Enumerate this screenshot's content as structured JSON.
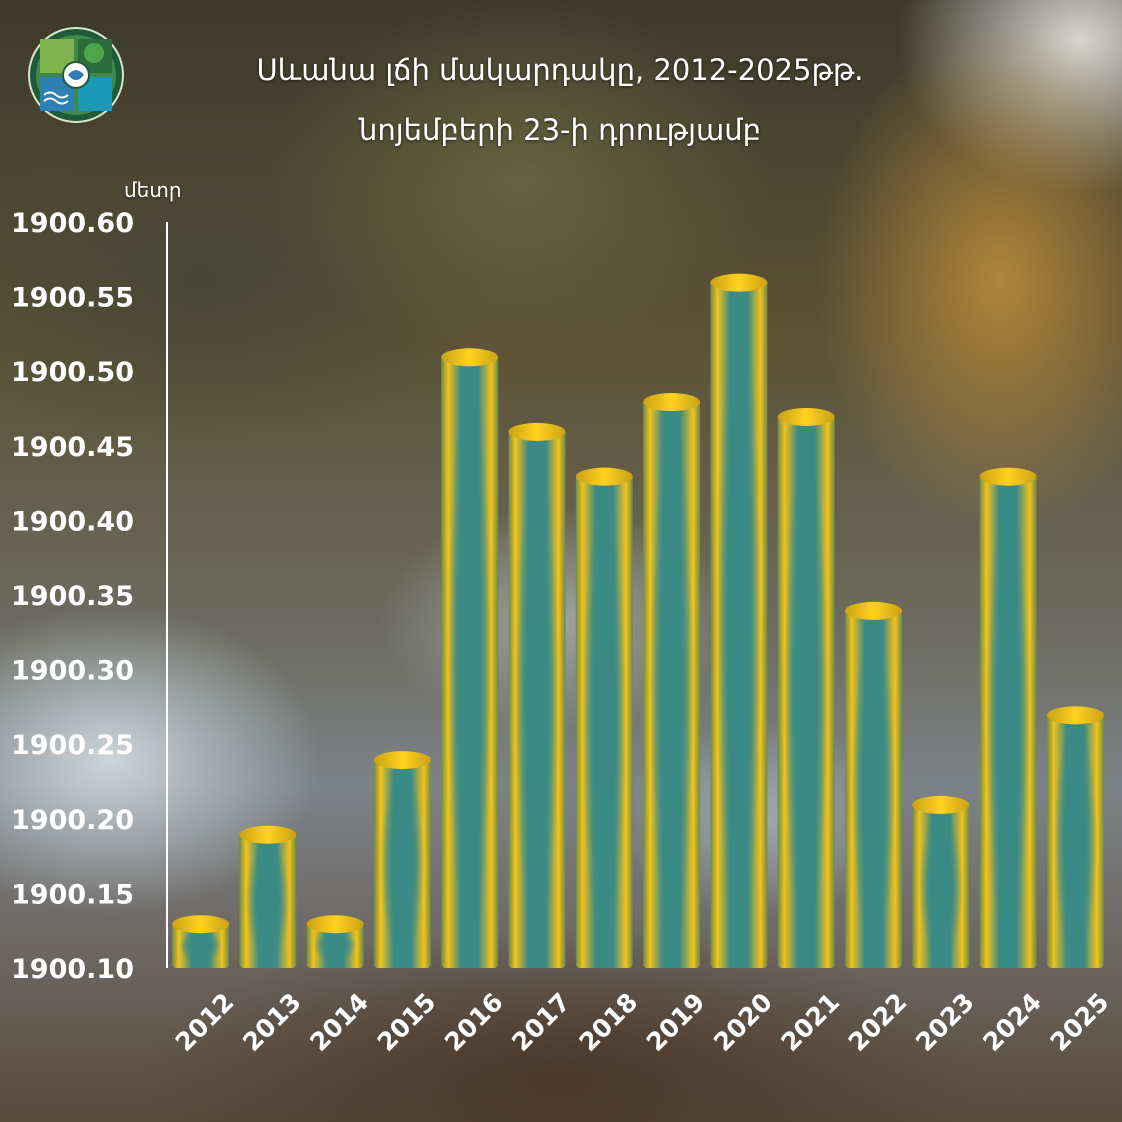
{
  "title_line1": "Սևանա լճի մակարդակը, 2012-2025թթ.",
  "title_line2": "նոյեմբերի 23-ի դրությամբ",
  "unit": "մետր",
  "logo_icon": "environment-ministry-logo-icon",
  "colors": {
    "bar_edge": "#f2c21a",
    "bar_core": "#3a8a86",
    "text": "#ffffff"
  },
  "chart_data": {
    "type": "bar",
    "title": "Սևանա լճի մակարդակը, 2012-2025թթ. նոյեմբերի 23-ի դրությամբ",
    "ylabel": "մետր",
    "xlabel": "",
    "categories": [
      "2012",
      "2013",
      "2014",
      "2015",
      "2016",
      "2017",
      "2018",
      "2019",
      "2020",
      "2021",
      "2022",
      "2023",
      "2024",
      "2025"
    ],
    "values": [
      1900.13,
      1900.19,
      1900.13,
      1900.24,
      1900.51,
      1900.46,
      1900.43,
      1900.48,
      1900.56,
      1900.47,
      1900.34,
      1900.21,
      1900.43,
      1900.27
    ],
    "ylim": [
      1900.1,
      1900.6
    ],
    "yticks": [
      "1900.10",
      "1900.15",
      "1900.20",
      "1900.25",
      "1900.30",
      "1900.35",
      "1900.40",
      "1900.45",
      "1900.50",
      "1900.55",
      "1900.60"
    ],
    "grid": false,
    "legend": "none"
  }
}
